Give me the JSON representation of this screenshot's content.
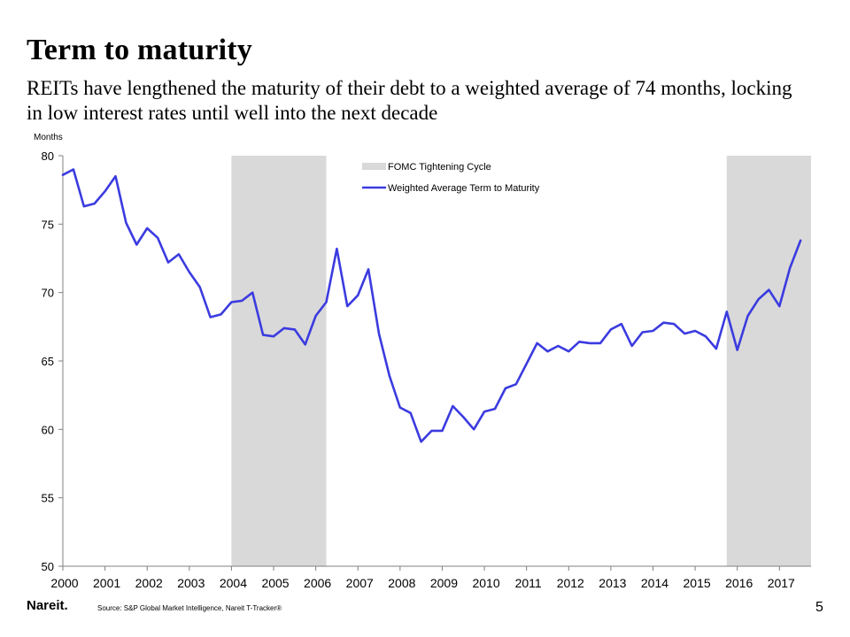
{
  "page": {
    "title": "Term to maturity",
    "subtitle": "REITs have lengthened the maturity of their debt to a weighted average of 74 months, locking in low interest rates until well into the next decade",
    "logo": "Nareit.",
    "source": "Source: S&P Global Market Intelligence, Nareit T-Tracker®",
    "page_number": "5"
  },
  "colors": {
    "line": "#3b3be0",
    "shade": "#d9d9d9",
    "axis": "#808080"
  },
  "chart_data": {
    "type": "line",
    "ylabel": "Months",
    "ylim": [
      50,
      80
    ],
    "yticks": [
      50,
      55,
      60,
      65,
      70,
      75,
      80
    ],
    "xlim": [
      2000,
      2017.75
    ],
    "xticks": [
      "2000",
      "2001",
      "2002",
      "2003",
      "2004",
      "2005",
      "2006",
      "2007",
      "2008",
      "2009",
      "2010",
      "2011",
      "2012",
      "2013",
      "2014",
      "2015",
      "2016",
      "2017"
    ],
    "grid": false,
    "legend_position": "top-center",
    "shaded_periods": {
      "name": "FOMC Tightening Cycle",
      "ranges": [
        [
          2004.0,
          2006.25
        ],
        [
          2015.75,
          2017.75
        ]
      ]
    },
    "series": [
      {
        "name": "Weighted Average Term to Maturity",
        "x": [
          2000.0,
          2000.25,
          2000.5,
          2000.75,
          2001.0,
          2001.25,
          2001.5,
          2001.75,
          2002.0,
          2002.25,
          2002.5,
          2002.75,
          2003.0,
          2003.25,
          2003.5,
          2003.75,
          2004.0,
          2004.25,
          2004.5,
          2004.75,
          2005.0,
          2005.25,
          2005.5,
          2005.75,
          2006.0,
          2006.25,
          2006.5,
          2006.75,
          2007.0,
          2007.25,
          2007.5,
          2007.75,
          2008.0,
          2008.25,
          2008.5,
          2008.75,
          2009.0,
          2009.25,
          2009.5,
          2009.75,
          2010.0,
          2010.25,
          2010.5,
          2010.75,
          2011.0,
          2011.25,
          2011.5,
          2011.75,
          2012.0,
          2012.25,
          2012.5,
          2012.75,
          2013.0,
          2013.25,
          2013.5,
          2013.75,
          2014.0,
          2014.25,
          2014.5,
          2014.75,
          2015.0,
          2015.25,
          2015.5,
          2015.75,
          2016.0,
          2016.25,
          2016.5,
          2016.75,
          2017.0,
          2017.25,
          2017.5
        ],
        "values": [
          78.6,
          79.0,
          76.3,
          76.5,
          77.4,
          78.5,
          75.1,
          73.5,
          74.7,
          74.0,
          72.2,
          72.8,
          71.5,
          70.4,
          68.2,
          68.4,
          69.3,
          69.4,
          70.0,
          66.9,
          66.8,
          67.4,
          67.3,
          66.2,
          68.3,
          69.3,
          73.2,
          69.0,
          69.8,
          71.7,
          67.0,
          63.9,
          61.6,
          61.2,
          59.1,
          59.9,
          59.9,
          61.7,
          60.9,
          60.0,
          61.3,
          61.5,
          63.0,
          63.3,
          64.8,
          66.3,
          65.7,
          66.1,
          65.7,
          66.4,
          66.3,
          66.3,
          67.3,
          67.7,
          66.1,
          67.1,
          67.2,
          67.8,
          67.7,
          67.0,
          67.2,
          66.8,
          65.9,
          68.6,
          65.8,
          68.3,
          69.5,
          70.2,
          69.0,
          71.8,
          73.8
        ]
      }
    ]
  }
}
